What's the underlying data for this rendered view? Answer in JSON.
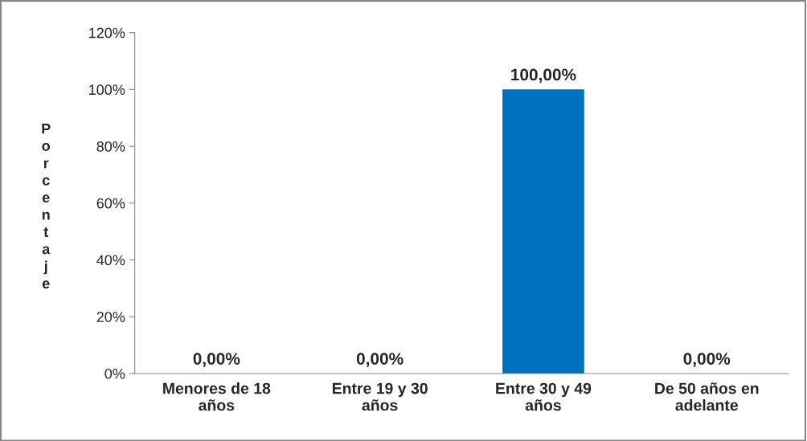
{
  "chart_data": {
    "type": "bar",
    "ylabel": "Porcentaje",
    "categories": [
      "Menores de 18\naños",
      "Entre 19 y 30\naños",
      "Entre 30 y 49\naños",
      "De 50 años en\nadelante"
    ],
    "values": [
      0,
      0,
      100,
      0
    ],
    "value_labels": [
      "0,00%",
      "0,00%",
      "100,00%",
      "0,00%"
    ],
    "color": "#0070c0",
    "ylim": [
      0,
      120
    ],
    "yticks": [
      {
        "value": 0,
        "label": "0%"
      },
      {
        "value": 20,
        "label": "20%"
      },
      {
        "value": 40,
        "label": "40%"
      },
      {
        "value": 60,
        "label": "60%"
      },
      {
        "value": 80,
        "label": "80%"
      },
      {
        "value": 100,
        "label": "100%"
      },
      {
        "value": 120,
        "label": "120%"
      }
    ],
    "grid": false,
    "legend": false
  }
}
